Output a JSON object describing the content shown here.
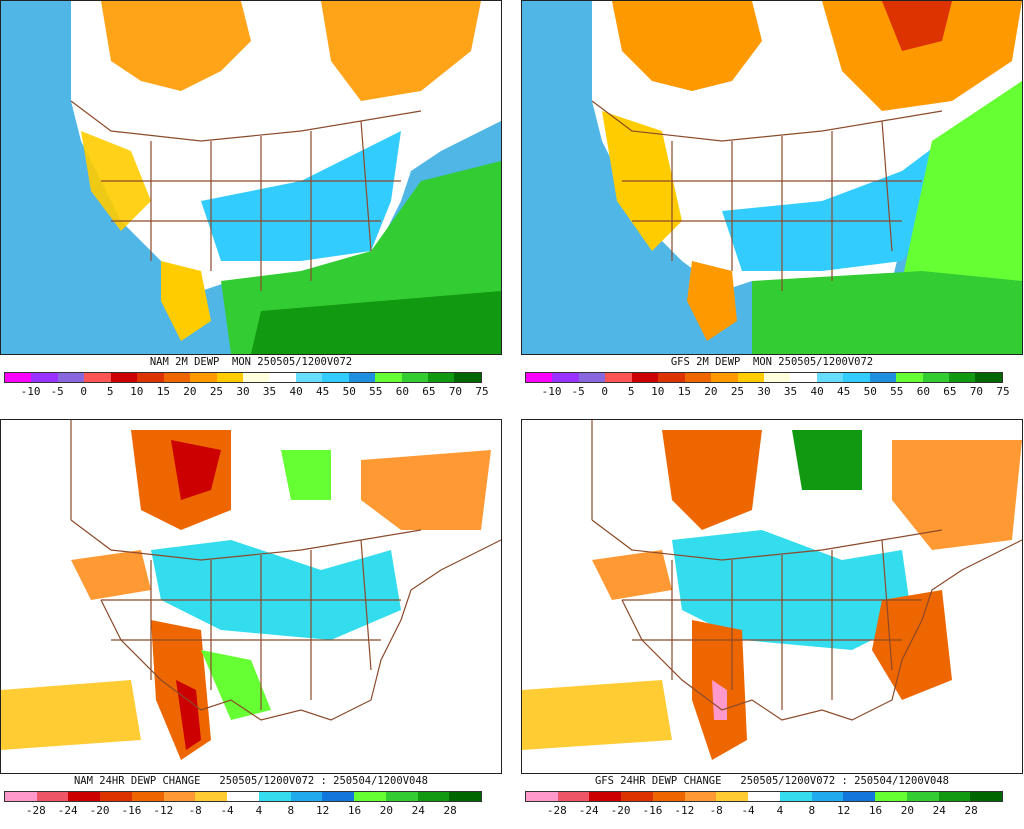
{
  "panels": [
    {
      "id": "nam-dewp",
      "caption": "NAM 2M DEWP  MON 250505/1200V072",
      "ticks": [
        "-10",
        "-5",
        "0",
        "5",
        "10",
        "15",
        "20",
        "25",
        "30",
        "35",
        "40",
        "45",
        "50",
        "55",
        "60",
        "65",
        "70",
        "75"
      ],
      "colors": [
        "#ff00ff",
        "#9933ff",
        "#8866dd",
        "#ff5555",
        "#cc0000",
        "#dd3300",
        "#ee6600",
        "#ff9900",
        "#ffcc00",
        "#ffffdd",
        "#ffffff",
        "#66ddff",
        "#33ccff",
        "#1f8fdf",
        "#66ff33",
        "#33cc33",
        "#119911",
        "#006600"
      ],
      "land_color": "#ffffff",
      "ocean_color": "#4fb6e6"
    },
    {
      "id": "gfs-dewp",
      "caption": "GFS 2M DEWP  MON 250505/1200V072",
      "ticks": [
        "-10",
        "-5",
        "0",
        "5",
        "10",
        "15",
        "20",
        "25",
        "30",
        "35",
        "40",
        "45",
        "50",
        "55",
        "60",
        "65",
        "70",
        "75"
      ],
      "colors": [
        "#ff00ff",
        "#9933ff",
        "#8866dd",
        "#ff5555",
        "#cc0000",
        "#dd3300",
        "#ee6600",
        "#ff9900",
        "#ffcc00",
        "#ffffdd",
        "#ffffff",
        "#66ddff",
        "#33ccff",
        "#1f8fdf",
        "#66ff33",
        "#33cc33",
        "#119911",
        "#006600"
      ],
      "land_color": "#ffffff",
      "ocean_color": "#4fb6e6"
    },
    {
      "id": "nam-change",
      "caption": "NAM 24HR DEWP CHANGE   250505/1200V072 : 250504/1200V048",
      "ticks": [
        "-28",
        "-24",
        "-20",
        "-16",
        "-12",
        "-8",
        "-4",
        "4",
        "8",
        "12",
        "16",
        "20",
        "24",
        "28"
      ],
      "colors": [
        "#ff99cc",
        "#ee5566",
        "#cc0000",
        "#dd3300",
        "#ee6600",
        "#ff9933",
        "#ffcc33",
        "#ffffff",
        "#33ddee",
        "#22aaee",
        "#1177dd",
        "#66ff33",
        "#33cc33",
        "#119911",
        "#006600"
      ],
      "land_color": "#ffffff",
      "ocean_color": "#ffffff"
    },
    {
      "id": "gfs-change",
      "caption": "GFS 24HR DEWP CHANGE   250505/1200V072 : 250504/1200V048",
      "ticks": [
        "-28",
        "-24",
        "-20",
        "-16",
        "-12",
        "-8",
        "-4",
        "4",
        "8",
        "12",
        "16",
        "20",
        "24",
        "28"
      ],
      "colors": [
        "#ff99cc",
        "#ee5566",
        "#cc0000",
        "#dd3300",
        "#ee6600",
        "#ff9933",
        "#ffcc33",
        "#ffffff",
        "#33ddee",
        "#22aaee",
        "#1177dd",
        "#66ff33",
        "#33cc33",
        "#119911",
        "#006600"
      ],
      "land_color": "#ffffff",
      "ocean_color": "#ffffff"
    }
  ],
  "border_color": "#8b4a2b"
}
